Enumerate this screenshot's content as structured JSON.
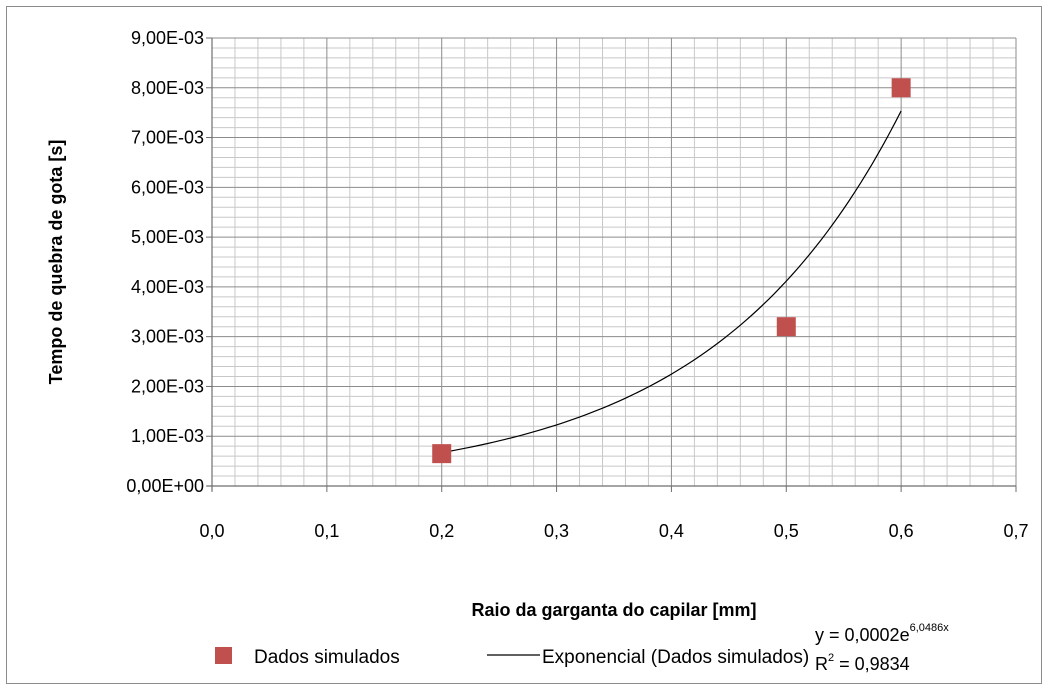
{
  "chart_data": {
    "type": "scatter",
    "xlabel": "Raio da garganta do capilar [mm]",
    "ylabel": "Tempo de quebra de gota [s]",
    "xlim": [
      0,
      0.7
    ],
    "ylim": [
      0,
      0.009
    ],
    "x_ticks": [
      "0,0",
      "0,1",
      "0,2",
      "0,3",
      "0,4",
      "0,5",
      "0,6",
      "0,7"
    ],
    "y_ticks": [
      "0,00E+00",
      "1,00E-03",
      "2,00E-03",
      "3,00E-03",
      "4,00E-03",
      "5,00E-03",
      "6,00E-03",
      "7,00E-03",
      "8,00E-03",
      "9,00E-03"
    ],
    "grid": true,
    "legend_position": "bottom",
    "series": [
      {
        "name": "Dados simulados",
        "type": "scatter",
        "color": "#c0504d",
        "marker": "square",
        "points": [
          {
            "x": 0.2,
            "y": 0.00065
          },
          {
            "x": 0.5,
            "y": 0.0032
          },
          {
            "x": 0.6,
            "y": 0.008
          }
        ]
      },
      {
        "name": "Exponencial (Dados simulados)",
        "type": "line",
        "color": "#000000",
        "fit": {
          "a": 0.0002,
          "b": 6.0486,
          "x_from": 0.2,
          "x_to": 0.6
        }
      }
    ],
    "annotations": {
      "equation_prefix": "y = 0,0002e",
      "equation_exponent": "6,0486x",
      "r2_prefix": "R",
      "r2_sup": "2",
      "r2_value": " = 0,9834"
    }
  }
}
